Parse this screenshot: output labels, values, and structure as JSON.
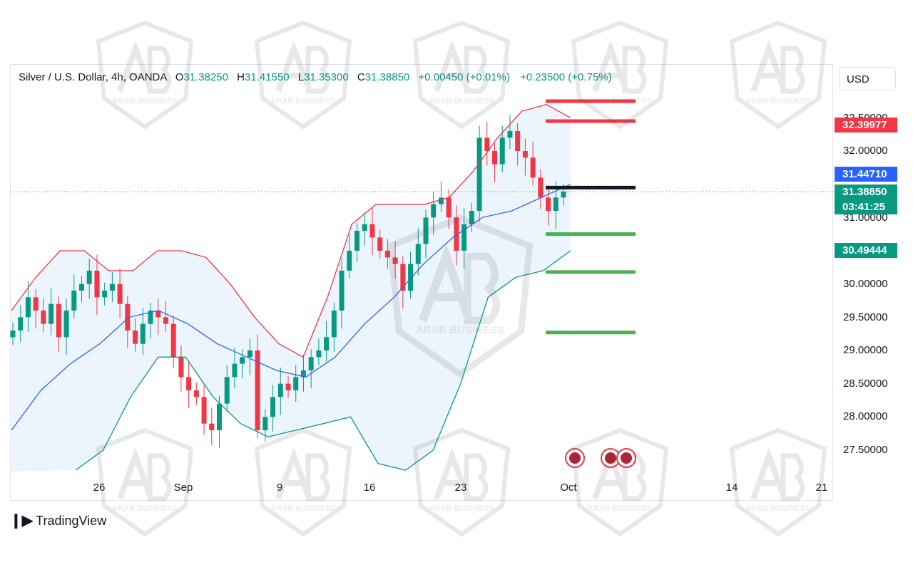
{
  "header": {
    "symbol": "Silver / U.S. Dollar, 4h, OANDA",
    "open_label": "O",
    "open": "31.38250",
    "high_label": "H",
    "high": "31.41550",
    "low_label": "L",
    "low": "31.35300",
    "close_label": "C",
    "close": "31.38850",
    "change": "+0.00450 (+0.01%)",
    "change2": "+0.23500 (+0.75%)"
  },
  "currency": "USD",
  "price_scale": {
    "ticks": [
      "32.50000",
      "32.00000",
      "31.00000",
      "30.00000",
      "29.50000",
      "29.00000",
      "28.50000",
      "28.00000",
      "27.50000"
    ],
    "badges": [
      {
        "text": "32.39977",
        "color": "#f23645"
      },
      {
        "text": "31.44710",
        "color": "#2962ff"
      },
      {
        "text": "31.38850",
        "color": "#089981"
      },
      {
        "text": "03:41:25",
        "color": "#089981"
      },
      {
        "text": "30.49444",
        "color": "#089981"
      }
    ]
  },
  "time_axis": [
    "26",
    "Sep",
    "9",
    "16",
    "23",
    "Oct",
    "14",
    "21"
  ],
  "watermark": "ARAB BUSINESS",
  "brand": "TradingView",
  "colors": {
    "up": "#089981",
    "down": "#f23645",
    "upper_band": "#f23645",
    "lower_band": "#089981",
    "basis": "#2962ff",
    "band_fill": "#eaf4fd"
  },
  "levels": [
    {
      "price": 32.75,
      "color": "#f23645"
    },
    {
      "price": 32.45,
      "color": "#f23645"
    },
    {
      "price": 31.45,
      "color": "#131722"
    },
    {
      "price": 30.75,
      "color": "#4caf50"
    },
    {
      "price": 30.18,
      "color": "#4caf50"
    },
    {
      "price": 29.27,
      "color": "#4caf50"
    }
  ],
  "chart_data": {
    "type": "candlestick",
    "title": "Silver / U.S. Dollar, 4h, OANDA",
    "indicator": "Bollinger Bands",
    "ylim": [
      27.2,
      33.0
    ],
    "x_ticks": [
      "26",
      "Sep",
      "9",
      "16",
      "23",
      "Oct",
      "14",
      "21"
    ],
    "close_path": [
      29.3,
      29.5,
      29.8,
      29.6,
      29.4,
      29.7,
      29.2,
      29.6,
      29.9,
      30.0,
      30.2,
      29.8,
      29.9,
      30.0,
      29.7,
      29.3,
      29.1,
      29.4,
      29.6,
      29.5,
      29.4,
      28.9,
      28.6,
      28.4,
      28.3,
      27.9,
      27.8,
      28.2,
      28.6,
      28.8,
      28.9,
      29.0,
      27.8,
      28.0,
      28.3,
      28.5,
      28.4,
      28.6,
      28.7,
      28.9,
      29.0,
      29.2,
      29.6,
      30.2,
      30.5,
      30.8,
      30.9,
      30.7,
      30.5,
      30.4,
      30.3,
      29.9,
      30.3,
      30.6,
      31.0,
      31.2,
      31.3,
      31.0,
      30.5,
      30.9,
      31.1,
      32.2,
      32.0,
      31.8,
      32.2,
      32.3,
      32.0,
      31.9,
      31.6,
      31.3,
      31.1,
      31.3,
      31.39
    ],
    "upper_band": [
      29.6,
      30.1,
      30.5,
      30.5,
      30.2,
      30.2,
      30.5,
      30.5,
      30.4,
      30.0,
      29.5,
      29.1,
      28.9,
      29.8,
      30.9,
      31.2,
      31.2,
      31.2,
      31.3,
      31.7,
      32.2,
      32.6,
      32.7,
      32.5
    ],
    "basis": [
      27.8,
      28.4,
      28.8,
      29.1,
      29.5,
      29.6,
      29.4,
      29.1,
      28.9,
      28.7,
      28.6,
      28.9,
      29.4,
      29.8,
      30.3,
      30.7,
      31.0,
      31.1,
      31.3,
      31.5
    ],
    "lower_band": [
      27.2,
      27.5,
      28.3,
      28.9,
      28.9,
      28.3,
      27.9,
      27.7,
      27.8,
      27.9,
      28.0,
      27.3,
      27.2,
      27.5,
      28.5,
      29.8,
      30.1,
      30.2,
      30.5
    ]
  }
}
